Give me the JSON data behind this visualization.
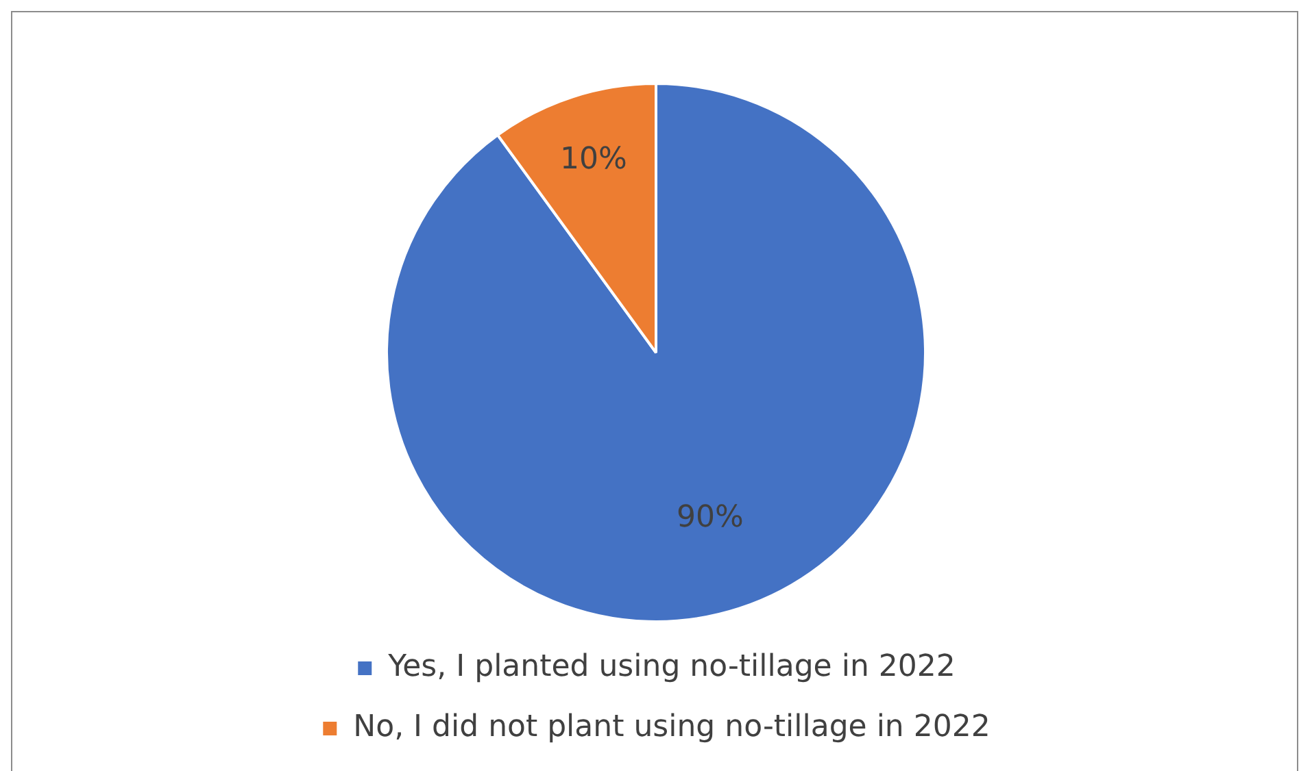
{
  "chart_data": {
    "type": "pie",
    "categories": [
      "Yes, I planted using no-tillage in 2022",
      "No, I did not plant using no-tillage in 2022"
    ],
    "values": [
      90,
      10
    ],
    "colors": [
      "#4472c4",
      "#ed7d31"
    ],
    "value_labels": [
      "90%",
      "10%"
    ],
    "legend": "bottom"
  }
}
